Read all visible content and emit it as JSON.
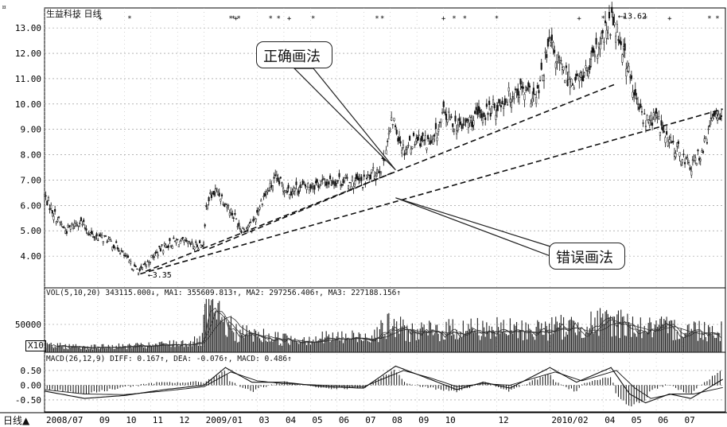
{
  "window": {
    "corner_glyph": "¤",
    "timeframe_label": "日线",
    "timeframe_arrow": "▲"
  },
  "chart_data": [
    {
      "type": "candlestick",
      "title": "生益科技 日线",
      "ylim": [
        3.0,
        13.6
      ],
      "yticks": [
        "13.00",
        "12.00",
        "11.00",
        "10.00",
        "9.00",
        "8.00",
        "7.00",
        "6.00",
        "5.00",
        "4.00"
      ],
      "ytick_values": [
        13,
        12,
        11,
        10,
        9,
        8,
        7,
        6,
        5,
        4
      ],
      "x_range": [
        "2008/07",
        "2010/08"
      ],
      "x_tick_labels": [
        "2008/07",
        "09",
        "10",
        "11",
        "12",
        "2009/01",
        "03",
        "04",
        "05",
        "06",
        "07",
        "08",
        "09",
        "10",
        "12",
        "2010/02",
        "04",
        "05",
        "06",
        "07"
      ],
      "x_tick_months": [
        0,
        2,
        3,
        4,
        5,
        6,
        8,
        9,
        10,
        11,
        12,
        13,
        14,
        15,
        17,
        19,
        21,
        22,
        23,
        24
      ],
      "close_path": [
        [
          0.0,
          6.4
        ],
        [
          0.4,
          5.6
        ],
        [
          0.8,
          5.0
        ],
        [
          1.3,
          5.4
        ],
        [
          1.8,
          4.8
        ],
        [
          2.3,
          4.7
        ],
        [
          2.8,
          4.3
        ],
        [
          3.3,
          3.6
        ],
        [
          3.6,
          3.4
        ],
        [
          4.0,
          3.9
        ],
        [
          4.5,
          4.4
        ],
        [
          5.0,
          4.6
        ],
        [
          5.6,
          4.4
        ],
        [
          6.0,
          4.5
        ],
        [
          6.1,
          6.2
        ],
        [
          6.5,
          6.6
        ],
        [
          7.0,
          5.8
        ],
        [
          7.4,
          5.1
        ],
        [
          7.8,
          5.2
        ],
        [
          8.2,
          6.3
        ],
        [
          8.7,
          7.0
        ],
        [
          9.2,
          6.6
        ],
        [
          10.0,
          6.8
        ],
        [
          11.0,
          7.0
        ],
        [
          12.0,
          6.9
        ],
        [
          12.7,
          7.6
        ],
        [
          13.1,
          9.4
        ],
        [
          13.5,
          8.2
        ],
        [
          14.0,
          8.7
        ],
        [
          14.6,
          8.4
        ],
        [
          15.0,
          9.6
        ],
        [
          15.6,
          9.1
        ],
        [
          16.3,
          9.5
        ],
        [
          17.0,
          9.9
        ],
        [
          17.8,
          10.6
        ],
        [
          18.5,
          10.2
        ],
        [
          19.0,
          12.4
        ],
        [
          19.5,
          11.2
        ],
        [
          20.0,
          10.9
        ],
        [
          20.5,
          11.4
        ],
        [
          21.0,
          12.6
        ],
        [
          21.4,
          13.4
        ],
        [
          21.8,
          12.0
        ],
        [
          22.2,
          10.2
        ],
        [
          22.6,
          9.3
        ],
        [
          23.0,
          9.5
        ],
        [
          23.4,
          8.6
        ],
        [
          23.8,
          8.2
        ],
        [
          24.3,
          7.5
        ],
        [
          24.8,
          8.3
        ],
        [
          25.2,
          9.7
        ]
      ],
      "min_label": "3.35",
      "max_label": "13.62",
      "trendlines": [
        {
          "name": "correct",
          "from": [
            3.8,
            3.4
          ],
          "to": [
            21.5,
            10.8
          ]
        },
        {
          "name": "wrong",
          "from": [
            3.6,
            3.3
          ],
          "to": [
            25.5,
            9.8
          ]
        },
        {
          "name": "wrong-leg",
          "from": [
            6.2,
            4.3
          ],
          "to": [
            13.1,
            7.3
          ]
        }
      ],
      "annotations": [
        {
          "name": "correct-method",
          "text": "正确画法"
        },
        {
          "name": "wrong-method",
          "text": "错误画法"
        }
      ]
    },
    {
      "type": "volume",
      "header": "VOL(5,10,20) 343115.000↓, MA1: 355609.813↑, MA2: 297256.406↑, MA3: 227188.156↑",
      "ytick_label": "50000",
      "unit_label": "X10",
      "profile": [
        [
          0,
          0.15
        ],
        [
          2,
          0.12
        ],
        [
          4,
          0.15
        ],
        [
          5.9,
          0.25
        ],
        [
          6.1,
          1.0
        ],
        [
          6.6,
          0.75
        ],
        [
          7.2,
          0.45
        ],
        [
          9,
          0.3
        ],
        [
          12,
          0.35
        ],
        [
          13,
          0.6
        ],
        [
          14,
          0.45
        ],
        [
          16,
          0.55
        ],
        [
          18,
          0.5
        ],
        [
          20,
          0.6
        ],
        [
          21.5,
          0.7
        ],
        [
          22.5,
          0.55
        ],
        [
          25.5,
          0.5
        ]
      ]
    },
    {
      "type": "macd",
      "header": "MACD(26,12,9) DIFF: 0.167↑, DEA: -0.076↑, MACD: 0.486↑",
      "ylim": [
        -0.8,
        0.85
      ],
      "yticks": [
        "0.50",
        "0.00",
        "-0.50"
      ],
      "ytick_values": [
        0.5,
        0.0,
        -0.5
      ],
      "diff_path": [
        [
          0,
          -0.2
        ],
        [
          1.5,
          -0.45
        ],
        [
          3,
          -0.35
        ],
        [
          4.5,
          -0.15
        ],
        [
          6.0,
          0.0
        ],
        [
          6.8,
          0.6
        ],
        [
          7.8,
          0.1
        ],
        [
          9,
          0.1
        ],
        [
          10.5,
          -0.05
        ],
        [
          12,
          -0.1
        ],
        [
          13.2,
          0.65
        ],
        [
          14.5,
          0.2
        ],
        [
          15.5,
          -0.15
        ],
        [
          16.5,
          0.1
        ],
        [
          17.5,
          -0.1
        ],
        [
          19,
          0.6
        ],
        [
          20,
          0.1
        ],
        [
          21.3,
          0.6
        ],
        [
          22.0,
          -0.3
        ],
        [
          22.6,
          -0.6
        ],
        [
          23.5,
          -0.3
        ],
        [
          24.3,
          -0.45
        ],
        [
          25.5,
          0.2
        ]
      ],
      "dea_path": [
        [
          0,
          -0.15
        ],
        [
          1.5,
          -0.3
        ],
        [
          3,
          -0.32
        ],
        [
          4.5,
          -0.2
        ],
        [
          6.0,
          -0.05
        ],
        [
          7.0,
          0.45
        ],
        [
          8.0,
          0.15
        ],
        [
          9,
          0.05
        ],
        [
          10.5,
          0.0
        ],
        [
          12,
          -0.05
        ],
        [
          13.5,
          0.5
        ],
        [
          14.5,
          0.25
        ],
        [
          15.5,
          -0.05
        ],
        [
          16.5,
          0.05
        ],
        [
          17.5,
          0.0
        ],
        [
          19.2,
          0.45
        ],
        [
          20.2,
          0.15
        ],
        [
          21.5,
          0.5
        ],
        [
          22.2,
          -0.1
        ],
        [
          22.8,
          -0.45
        ],
        [
          23.6,
          -0.3
        ],
        [
          24.4,
          -0.3
        ],
        [
          25.5,
          -0.08
        ]
      ]
    }
  ]
}
